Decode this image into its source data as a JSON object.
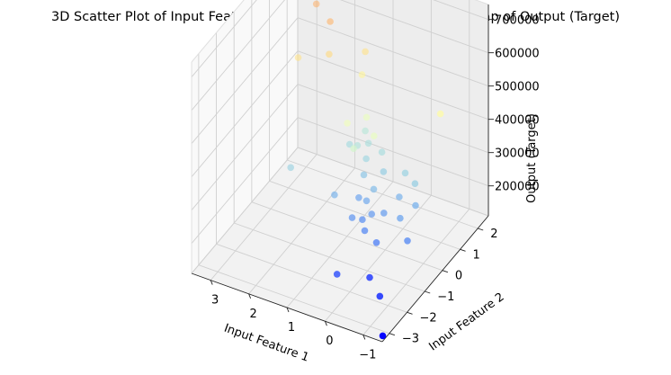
{
  "chart_data": {
    "type": "scatter",
    "projection": "3d",
    "title": "3D Scatter Plot of Input Features and Output (Target) with Color Map of Output (Target)",
    "xlabel": "Input Feature 1",
    "ylabel": "Input Feature 2",
    "zlabel": "Output (Target)",
    "xticks": [
      "−1",
      "0",
      "1",
      "2",
      "3"
    ],
    "yticks": [
      "−3",
      "−2",
      "−1",
      "0",
      "1",
      "2"
    ],
    "zticks": [
      "200000",
      "300000",
      "400000",
      "500000",
      "600000",
      "700000"
    ],
    "colormap": "rainbow",
    "grid": true,
    "points": [
      {
        "x": -1.42,
        "y": -3.2,
        "z": 112000
      },
      {
        "x": -0.95,
        "y": -2.35,
        "z": 158000
      },
      {
        "x": -0.45,
        "y": -1.85,
        "z": 162000
      },
      {
        "x": 0.15,
        "y": -2.4,
        "z": 182000
      },
      {
        "x": -1.0,
        "y": -0.9,
        "z": 235000
      },
      {
        "x": -0.35,
        "y": -1.25,
        "z": 225000
      },
      {
        "x": 0.05,
        "y": -1.05,
        "z": 232000
      },
      {
        "x": 0.25,
        "y": -0.75,
        "z": 238000
      },
      {
        "x": 0.1,
        "y": -0.55,
        "z": 248000
      },
      {
        "x": 0.45,
        "y": -0.9,
        "z": 245000
      },
      {
        "x": -0.6,
        "y": -0.45,
        "z": 258000
      },
      {
        "x": -0.15,
        "y": -0.4,
        "z": 252000
      },
      {
        "x": 0.35,
        "y": -0.3,
        "z": 262000
      },
      {
        "x": -0.75,
        "y": 0.1,
        "z": 268000
      },
      {
        "x": -0.3,
        "y": 0.15,
        "z": 272000
      },
      {
        "x": 0.6,
        "y": -0.2,
        "z": 255000
      },
      {
        "x": 0.3,
        "y": 0.0,
        "z": 280000
      },
      {
        "x": -0.55,
        "y": 0.5,
        "z": 300000
      },
      {
        "x": -0.2,
        "y": 0.7,
        "z": 305000
      },
      {
        "x": 0.3,
        "y": 0.55,
        "z": 298000
      },
      {
        "x": 0.7,
        "y": 0.3,
        "z": 288000
      },
      {
        "x": 1.05,
        "y": -0.6,
        "z": 270000
      },
      {
        "x": 0.8,
        "y": 0.65,
        "z": 310000
      },
      {
        "x": 0.55,
        "y": 1.0,
        "z": 318000
      },
      {
        "x": 0.95,
        "y": 1.1,
        "z": 322000
      },
      {
        "x": 1.1,
        "y": 0.8,
        "z": 328000
      },
      {
        "x": 1.15,
        "y": 1.35,
        "z": 335000
      },
      {
        "x": 1.35,
        "y": 0.9,
        "z": 315000
      },
      {
        "x": 2.2,
        "y": -0.6,
        "z": 305000
      },
      {
        "x": 0.9,
        "y": 0.15,
        "z": 368000
      },
      {
        "x": 0.55,
        "y": 0.55,
        "z": 395000
      },
      {
        "x": 1.25,
        "y": 0.55,
        "z": 405000
      },
      {
        "x": 1.0,
        "y": 1.1,
        "z": 398000
      },
      {
        "x": -0.75,
        "y": 1.5,
        "z": 455000
      },
      {
        "x": 1.35,
        "y": 1.6,
        "z": 480000
      },
      {
        "x": 1.45,
        "y": 2.0,
        "z": 520000
      },
      {
        "x": 2.05,
        "y": 1.25,
        "z": 535000
      },
      {
        "x": 2.3,
        "y": 1.85,
        "z": 585000
      },
      {
        "x": 2.7,
        "y": 0.9,
        "z": 520000
      },
      {
        "x": 2.85,
        "y": 2.25,
        "z": 590000
      },
      {
        "x": 3.4,
        "y": 2.45,
        "z": 735000
      }
    ]
  }
}
